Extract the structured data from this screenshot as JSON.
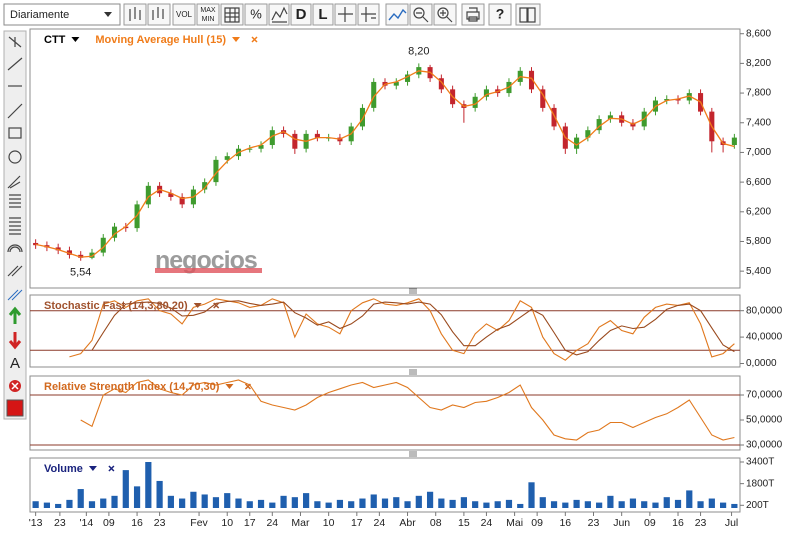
{
  "toolbar": {
    "interval": "Diariamente",
    "buttons": [
      "VOL",
      "MAX",
      "MIN",
      "%",
      "D",
      "L",
      "?"
    ],
    "side": [
      "A"
    ]
  },
  "watermark": "negocios",
  "chart_data": [
    {
      "type": "candlestick",
      "title": "CTT",
      "title_color": "#000000",
      "x": [
        1,
        3,
        5,
        7,
        9,
        11,
        13,
        15,
        17,
        19,
        21,
        23,
        25,
        27,
        29,
        31,
        33,
        35,
        37,
        39,
        41,
        43,
        45,
        47,
        49,
        51,
        53,
        55,
        57,
        59,
        61,
        63,
        65,
        67,
        69,
        71,
        73,
        75,
        77,
        79,
        81,
        83,
        85,
        87,
        89,
        91,
        93,
        95,
        97,
        99,
        101,
        103,
        105,
        107,
        109,
        111,
        113,
        115,
        117,
        119,
        121,
        123,
        125
      ],
      "open": [
        5.78,
        5.75,
        5.72,
        5.68,
        5.62,
        5.58,
        5.65,
        5.85,
        6.0,
        5.98,
        6.3,
        6.55,
        6.45,
        6.4,
        6.3,
        6.5,
        6.6,
        6.9,
        6.95,
        7.05,
        7.05,
        7.1,
        7.3,
        7.25,
        7.05,
        7.25,
        7.2,
        7.2,
        7.15,
        7.35,
        7.6,
        7.95,
        7.9,
        7.95,
        8.05,
        8.15,
        8.0,
        7.85,
        7.65,
        7.6,
        7.75,
        7.85,
        7.8,
        7.95,
        8.1,
        7.85,
        7.6,
        7.35,
        7.05,
        7.2,
        7.3,
        7.45,
        7.5,
        7.4,
        7.35,
        7.55,
        7.7,
        7.72,
        7.7,
        7.8,
        7.55,
        7.15,
        7.1
      ],
      "high": [
        5.83,
        5.8,
        5.77,
        5.73,
        5.67,
        5.7,
        5.9,
        6.05,
        6.05,
        6.35,
        6.6,
        6.6,
        6.5,
        6.45,
        6.55,
        6.65,
        6.95,
        7.0,
        7.1,
        7.1,
        7.15,
        7.35,
        7.35,
        7.3,
        7.3,
        7.3,
        7.25,
        7.25,
        7.4,
        7.65,
        8.0,
        8.0,
        8.0,
        8.1,
        8.2,
        8.18,
        8.05,
        7.9,
        7.7,
        7.8,
        7.9,
        7.9,
        8.0,
        8.15,
        8.15,
        7.9,
        7.65,
        7.4,
        7.25,
        7.35,
        7.5,
        7.55,
        7.55,
        7.45,
        7.6,
        7.75,
        7.77,
        7.77,
        7.85,
        7.85,
        7.6,
        7.2,
        7.25
      ],
      "low": [
        5.7,
        5.67,
        5.63,
        5.57,
        5.54,
        5.56,
        5.6,
        5.8,
        5.93,
        5.93,
        6.25,
        6.4,
        6.35,
        6.25,
        6.25,
        6.45,
        6.55,
        6.85,
        6.9,
        7.0,
        7.0,
        7.05,
        7.2,
        6.98,
        7.0,
        7.15,
        7.15,
        7.1,
        7.1,
        7.3,
        7.55,
        7.85,
        7.85,
        7.9,
        8.0,
        7.95,
        7.8,
        7.6,
        7.4,
        7.55,
        7.7,
        7.75,
        7.75,
        7.9,
        7.8,
        7.55,
        7.3,
        6.98,
        6.98,
        7.15,
        7.25,
        7.4,
        7.35,
        7.3,
        7.3,
        7.5,
        7.65,
        7.65,
        7.65,
        7.5,
        7.0,
        7.0,
        7.05
      ],
      "close": [
        5.75,
        5.72,
        5.68,
        5.62,
        5.58,
        5.65,
        5.85,
        6.0,
        5.98,
        6.3,
        6.55,
        6.45,
        6.4,
        6.3,
        6.5,
        6.6,
        6.9,
        6.95,
        7.05,
        7.05,
        7.1,
        7.3,
        7.25,
        7.05,
        7.25,
        7.2,
        7.2,
        7.15,
        7.35,
        7.6,
        7.95,
        7.9,
        7.95,
        8.05,
        8.15,
        8.0,
        7.85,
        7.65,
        7.6,
        7.75,
        7.85,
        7.8,
        7.95,
        8.1,
        7.85,
        7.6,
        7.35,
        7.05,
        7.2,
        7.3,
        7.45,
        7.5,
        7.4,
        7.35,
        7.55,
        7.7,
        7.72,
        7.7,
        7.8,
        7.55,
        7.15,
        7.1,
        7.2
      ],
      "up_color": "#3f9b2e",
      "down_color": "#c3252d",
      "overlays": [
        {
          "name": "Moving Average Hull (15)",
          "color": "#f07c1a",
          "values": [
            5.76,
            5.73,
            5.69,
            5.64,
            5.59,
            5.6,
            5.72,
            5.9,
            6.0,
            6.15,
            6.4,
            6.5,
            6.45,
            6.38,
            6.4,
            6.52,
            6.72,
            6.88,
            7.0,
            7.06,
            7.1,
            7.22,
            7.28,
            7.18,
            7.15,
            7.2,
            7.2,
            7.18,
            7.25,
            7.45,
            7.75,
            7.92,
            7.95,
            8.02,
            8.1,
            8.08,
            7.95,
            7.75,
            7.62,
            7.65,
            7.78,
            7.82,
            7.88,
            8.02,
            8.0,
            7.78,
            7.5,
            7.2,
            7.1,
            7.2,
            7.35,
            7.46,
            7.45,
            7.38,
            7.45,
            7.62,
            7.7,
            7.72,
            7.76,
            7.68,
            7.35,
            7.12,
            7.08
          ]
        }
      ],
      "annotations": [
        {
          "x": 69,
          "y": 8.2,
          "text": "8,20"
        },
        {
          "x": 9,
          "y": 5.54,
          "text": "5,54"
        }
      ],
      "xlim": [
        0,
        126
      ],
      "ylim": [
        5.2,
        8.65
      ],
      "yticks": [
        {
          "value": 5.4,
          "label": "5,400"
        },
        {
          "value": 5.8,
          "label": "5,800"
        },
        {
          "value": 6.2,
          "label": "6,200"
        },
        {
          "value": 6.6,
          "label": "6,600"
        },
        {
          "value": 7.0,
          "label": "7,000"
        },
        {
          "value": 7.4,
          "label": "7,400"
        },
        {
          "value": 7.8,
          "label": "7,800"
        },
        {
          "value": 8.2,
          "label": "8,200"
        },
        {
          "value": 8.6,
          "label": "8,600"
        }
      ]
    },
    {
      "type": "line",
      "title": "Stochastic Fast (14,3,80,20)",
      "title_color": "#a0522d",
      "x": [
        1,
        3,
        5,
        7,
        9,
        11,
        13,
        15,
        17,
        19,
        21,
        23,
        25,
        27,
        29,
        31,
        33,
        35,
        37,
        39,
        41,
        43,
        45,
        47,
        49,
        51,
        53,
        55,
        57,
        59,
        61,
        63,
        65,
        67,
        69,
        71,
        73,
        75,
        77,
        79,
        81,
        83,
        85,
        87,
        89,
        91,
        93,
        95,
        97,
        99,
        101,
        103,
        105,
        107,
        109,
        111,
        113,
        115,
        117,
        119,
        121,
        123,
        125
      ],
      "series": [
        {
          "color": "#e0781e",
          "values": [
            null,
            null,
            null,
            10,
            15,
            35,
            90,
            95,
            85,
            95,
            98,
            80,
            75,
            60,
            85,
            90,
            98,
            95,
            92,
            85,
            88,
            98,
            92,
            40,
            75,
            60,
            55,
            45,
            80,
            92,
            98,
            90,
            88,
            92,
            98,
            80,
            45,
            20,
            15,
            45,
            60,
            50,
            65,
            95,
            85,
            40,
            15,
            5,
            20,
            30,
            55,
            65,
            50,
            45,
            70,
            85,
            90,
            88,
            92,
            60,
            10,
            15,
            30
          ]
        },
        {
          "color": "#9a4a1e",
          "values": [
            null,
            null,
            null,
            null,
            null,
            20,
            47,
            73,
            90,
            92,
            93,
            91,
            84,
            72,
            73,
            78,
            91,
            94,
            95,
            91,
            88,
            90,
            93,
            77,
            69,
            58,
            63,
            53,
            60,
            72,
            90,
            93,
            92,
            90,
            93,
            90,
            74,
            48,
            27,
            27,
            40,
            52,
            58,
            70,
            82,
            73,
            47,
            20,
            13,
            18,
            35,
            50,
            57,
            53,
            55,
            67,
            82,
            88,
            90,
            80,
            54,
            28,
            18
          ]
        }
      ],
      "reference_lines": [
        80,
        20
      ],
      "reference_color": "#8b3a2a",
      "xlim": [
        0,
        126
      ],
      "ylim": [
        0,
        100
      ],
      "yticks": [
        {
          "value": 0,
          "label": "0,0000"
        },
        {
          "value": 40,
          "label": "40,0000"
        },
        {
          "value": 80,
          "label": "80,0000"
        }
      ]
    },
    {
      "type": "line",
      "title": "Relative Strength Index (14,70,30)",
      "title_color": "#d2691e",
      "x": [
        1,
        3,
        5,
        7,
        9,
        11,
        13,
        15,
        17,
        19,
        21,
        23,
        25,
        27,
        29,
        31,
        33,
        35,
        37,
        39,
        41,
        43,
        45,
        47,
        49,
        51,
        53,
        55,
        57,
        59,
        61,
        63,
        65,
        67,
        69,
        71,
        73,
        75,
        77,
        79,
        81,
        83,
        85,
        87,
        89,
        91,
        93,
        95,
        97,
        99,
        101,
        103,
        105,
        107,
        109,
        111,
        113,
        115,
        117,
        119,
        121,
        123,
        125
      ],
      "series": [
        {
          "color": "#e0781e",
          "values": [
            null,
            null,
            null,
            null,
            50,
            45,
            70,
            75,
            72,
            80,
            82,
            75,
            72,
            70,
            78,
            80,
            78,
            80,
            82,
            78,
            65,
            62,
            60,
            58,
            62,
            68,
            72,
            75,
            78,
            80,
            76,
            78,
            80,
            76,
            68,
            60,
            58,
            62,
            60,
            64,
            65,
            68,
            72,
            78,
            60,
            50,
            38,
            35,
            34,
            40,
            42,
            48,
            48,
            44,
            48,
            52,
            55,
            60,
            66,
            52,
            38,
            34,
            36
          ]
        }
      ],
      "reference_lines": [
        70,
        30
      ],
      "reference_color": "#8b3a2a",
      "xlim": [
        0,
        126
      ],
      "ylim": [
        26,
        83.6
      ],
      "yticks": [
        {
          "value": 30,
          "label": "30,0000"
        },
        {
          "value": 50,
          "label": "50,0000"
        },
        {
          "value": 70,
          "label": "70,0000"
        }
      ]
    },
    {
      "type": "bar",
      "title": "Volume",
      "title_color": "#1a237e",
      "color": "#1f5fae",
      "x": [
        1,
        3,
        5,
        7,
        9,
        11,
        13,
        15,
        17,
        19,
        21,
        23,
        25,
        27,
        29,
        31,
        33,
        35,
        37,
        39,
        41,
        43,
        45,
        47,
        49,
        51,
        53,
        55,
        57,
        59,
        61,
        63,
        65,
        67,
        69,
        71,
        73,
        75,
        77,
        79,
        81,
        83,
        85,
        87,
        89,
        91,
        93,
        95,
        97,
        99,
        101,
        103,
        105,
        107,
        109,
        111,
        113,
        115,
        117,
        119,
        121,
        123,
        125
      ],
      "values": [
        500,
        400,
        300,
        600,
        1400,
        500,
        700,
        900,
        2800,
        1600,
        3400,
        2000,
        900,
        700,
        1200,
        1000,
        800,
        1100,
        700,
        500,
        600,
        400,
        900,
        800,
        1100,
        500,
        400,
        600,
        500,
        700,
        1000,
        700,
        800,
        500,
        900,
        1200,
        700,
        600,
        800,
        500,
        400,
        500,
        600,
        300,
        1900,
        800,
        500,
        400,
        600,
        500,
        400,
        900,
        500,
        700,
        500,
        400,
        800,
        600,
        1300,
        500,
        700,
        400,
        300
      ],
      "xlim": [
        0,
        126
      ],
      "ylim": [
        0,
        3400
      ],
      "yticks": [
        {
          "value": 200,
          "label": "200T"
        },
        {
          "value": 1800,
          "label": "1800T"
        },
        {
          "value": 3400,
          "label": "3400T"
        }
      ],
      "xticks": [
        {
          "value": 1,
          "label": "'13"
        },
        {
          "value": 5.3,
          "label": "23"
        },
        {
          "value": 10,
          "label": "'14"
        },
        {
          "value": 14,
          "label": "09"
        },
        {
          "value": 19,
          "label": "16"
        },
        {
          "value": 23,
          "label": "23"
        },
        {
          "value": 30,
          "label": "Fev"
        },
        {
          "value": 35,
          "label": "10"
        },
        {
          "value": 39,
          "label": "17"
        },
        {
          "value": 43,
          "label": "24"
        },
        {
          "value": 48,
          "label": "Mar"
        },
        {
          "value": 53,
          "label": "10"
        },
        {
          "value": 58,
          "label": "17"
        },
        {
          "value": 62,
          "label": "24"
        },
        {
          "value": 67,
          "label": "Abr"
        },
        {
          "value": 72,
          "label": "08"
        },
        {
          "value": 77,
          "label": "15"
        },
        {
          "value": 81,
          "label": "24"
        },
        {
          "value": 86,
          "label": "Mai"
        },
        {
          "value": 90,
          "label": "09"
        },
        {
          "value": 95,
          "label": "16"
        },
        {
          "value": 100,
          "label": "23"
        },
        {
          "value": 105,
          "label": "Jun"
        },
        {
          "value": 110,
          "label": "09"
        },
        {
          "value": 115,
          "label": "16"
        },
        {
          "value": 119,
          "label": "23"
        },
        {
          "value": 124.5,
          "label": "Jul"
        }
      ]
    }
  ]
}
